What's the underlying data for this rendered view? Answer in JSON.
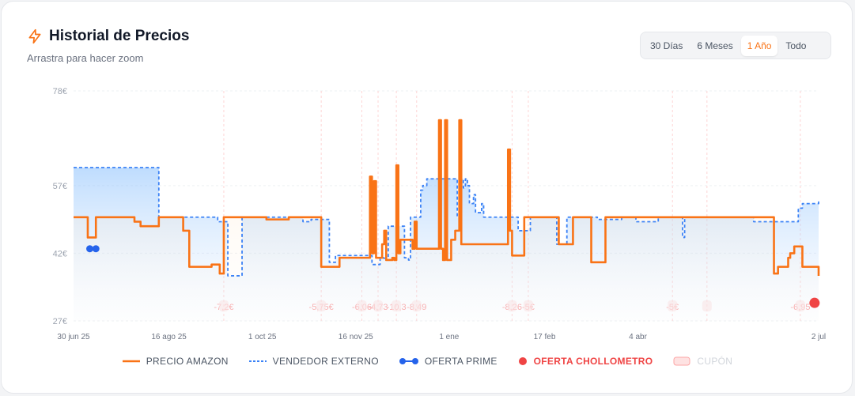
{
  "header": {
    "title": "Historial de Precios",
    "subtitle": "Arrastra para hacer zoom"
  },
  "range": {
    "options": [
      "30 Días",
      "6 Meses",
      "1 Año",
      "Todo"
    ],
    "selected": "1 Año"
  },
  "legend": {
    "amazon": "PRECIO AMAZON",
    "external": "VENDEDOR EXTERNO",
    "prime": "OFERTA PRIME",
    "chollometro": "OFERTA CHOLLOMETRO",
    "coupon": "CUPÓN"
  },
  "colors": {
    "amazon": "#f97316",
    "external": "#3b82f6",
    "prime": "#2563eb",
    "chollometro": "#ef4444",
    "coupon": "#fca5a5"
  },
  "chart_data": {
    "type": "line",
    "x_axis_type": "date",
    "xlim": [
      "2025-06-30",
      "2026-07-02"
    ],
    "ylim": [
      27,
      78
    ],
    "yticks": [
      27,
      42,
      57,
      78
    ],
    "ytick_labels": [
      "27€",
      "42€",
      "57€",
      "78€"
    ],
    "xticks": [
      {
        "date": "2025-06-30",
        "label": "30 jun 25"
      },
      {
        "date": "2025-08-16",
        "label": "16 ago 25"
      },
      {
        "date": "2025-10-01",
        "label": "1 oct 25"
      },
      {
        "date": "2025-11-16",
        "label": "16 nov 25"
      },
      {
        "date": "2026-01-01",
        "label": "1 ene"
      },
      {
        "date": "2026-02-17",
        "label": "17 feb"
      },
      {
        "date": "2026-04-04",
        "label": "4 abr"
      },
      {
        "date": "2026-07-02",
        "label": "2 jul"
      }
    ],
    "grid": true,
    "legend_position": "bottom",
    "series": [
      {
        "name": "PRECIO AMAZON",
        "style": "step-solid",
        "points": [
          [
            "2025-06-30",
            50
          ],
          [
            "2025-07-07",
            45.5
          ],
          [
            "2025-07-11",
            50
          ],
          [
            "2025-07-30",
            49
          ],
          [
            "2025-08-02",
            48
          ],
          [
            "2025-08-11",
            50
          ],
          [
            "2025-08-23",
            47
          ],
          [
            "2025-08-26",
            39
          ],
          [
            "2025-09-06",
            39.5
          ],
          [
            "2025-09-10",
            37.5
          ],
          [
            "2025-09-12",
            50
          ],
          [
            "2025-09-18",
            50
          ],
          [
            "2025-10-03",
            49.5
          ],
          [
            "2025-10-14",
            50
          ],
          [
            "2025-10-30",
            39
          ],
          [
            "2025-11-08",
            41
          ],
          [
            "2025-11-22",
            41
          ],
          [
            "2025-11-23",
            59
          ],
          [
            "2025-11-24",
            42
          ],
          [
            "2025-11-25",
            58
          ],
          [
            "2025-11-26",
            41
          ],
          [
            "2025-11-29",
            44
          ],
          [
            "2025-11-30",
            47
          ],
          [
            "2025-12-01",
            40.5
          ],
          [
            "2025-12-04",
            41
          ],
          [
            "2025-12-05",
            40.5
          ],
          [
            "2025-12-06",
            61.5
          ],
          [
            "2025-12-07",
            42
          ],
          [
            "2025-12-08",
            45
          ],
          [
            "2025-12-14",
            43
          ],
          [
            "2025-12-15",
            49
          ],
          [
            "2025-12-16",
            43
          ],
          [
            "2025-12-27",
            71.5
          ],
          [
            "2025-12-28",
            43
          ],
          [
            "2025-12-29",
            40.5
          ],
          [
            "2025-12-30",
            71.5
          ],
          [
            "2025-12-31",
            40.5
          ],
          [
            "2026-01-02",
            45
          ],
          [
            "2026-01-04",
            47
          ],
          [
            "2026-01-06",
            71.5
          ],
          [
            "2026-01-07",
            44
          ],
          [
            "2026-01-30",
            65
          ],
          [
            "2026-01-31",
            47
          ],
          [
            "2026-02-01",
            41.5
          ],
          [
            "2026-02-07",
            50
          ],
          [
            "2026-02-24",
            44
          ],
          [
            "2026-03-03",
            50
          ],
          [
            "2026-03-12",
            40
          ],
          [
            "2026-03-19",
            50
          ],
          [
            "2026-06-02",
            50
          ],
          [
            "2026-06-10",
            37.5
          ],
          [
            "2026-06-12",
            39
          ],
          [
            "2026-06-17",
            41
          ],
          [
            "2026-06-18",
            42
          ],
          [
            "2026-06-20",
            43.5
          ],
          [
            "2026-06-24",
            39
          ],
          [
            "2026-07-02",
            37
          ]
        ]
      },
      {
        "name": "VENDEDOR EXTERNO",
        "style": "step-dashed",
        "points": [
          [
            "2025-06-30",
            61
          ],
          [
            "2025-07-30",
            61
          ],
          [
            "2025-08-11",
            50
          ],
          [
            "2025-09-08",
            50
          ],
          [
            "2025-09-09",
            49
          ],
          [
            "2025-09-14",
            37
          ],
          [
            "2025-09-21",
            50
          ],
          [
            "2025-10-21",
            49
          ],
          [
            "2025-10-25",
            49.5
          ],
          [
            "2025-11-03",
            40
          ],
          [
            "2025-11-06",
            41.5
          ],
          [
            "2025-11-14",
            41.5
          ],
          [
            "2025-11-24",
            39.5
          ],
          [
            "2025-11-28",
            41
          ],
          [
            "2025-11-30",
            40.5
          ],
          [
            "2025-12-02",
            48
          ],
          [
            "2025-12-10",
            41
          ],
          [
            "2025-12-12",
            40.5
          ],
          [
            "2025-12-13",
            50
          ],
          [
            "2025-12-18",
            56
          ],
          [
            "2025-12-19",
            57
          ],
          [
            "2025-12-21",
            58.5
          ],
          [
            "2026-01-05",
            50
          ],
          [
            "2026-01-07",
            58.5
          ],
          [
            "2026-01-08",
            56.5
          ],
          [
            "2026-01-09",
            58.5
          ],
          [
            "2026-01-10",
            57
          ],
          [
            "2026-01-11",
            53
          ],
          [
            "2026-01-13",
            55
          ],
          [
            "2026-01-14",
            51
          ],
          [
            "2026-01-17",
            53
          ],
          [
            "2026-01-18",
            50
          ],
          [
            "2026-02-04",
            47
          ],
          [
            "2026-02-10",
            50
          ],
          [
            "2026-02-23",
            44
          ],
          [
            "2026-02-28",
            50
          ],
          [
            "2026-03-15",
            49.5
          ],
          [
            "2026-03-27",
            50
          ],
          [
            "2026-04-03",
            49
          ],
          [
            "2026-04-14",
            50
          ],
          [
            "2026-04-26",
            45.5
          ],
          [
            "2026-04-27",
            50
          ],
          [
            "2026-05-31",
            49
          ],
          [
            "2026-06-21",
            49
          ],
          [
            "2026-06-22",
            52
          ],
          [
            "2026-06-24",
            53
          ],
          [
            "2026-07-02",
            53.5
          ]
        ]
      }
    ],
    "prime_offers": [
      {
        "date": "2025-07-08",
        "price": 43
      },
      {
        "date": "2025-07-11",
        "price": 43
      }
    ],
    "chollometro_offers": [
      {
        "date": "2026-06-30",
        "price": 31
      }
    ],
    "coupons": [
      {
        "date": "2025-09-12",
        "label": "-7,2€"
      },
      {
        "date": "2025-10-30",
        "label": "-5,75€"
      },
      {
        "date": "2025-11-19",
        "label": "-6,06"
      },
      {
        "date": "2025-11-27",
        "label": "-4,73"
      },
      {
        "date": "2025-12-06",
        "label": "-10,3"
      },
      {
        "date": "2025-12-16",
        "label": "-8,49"
      },
      {
        "date": "2026-02-01",
        "label": "-8,26"
      },
      {
        "date": "2026-02-09",
        "label": "-5€"
      },
      {
        "date": "2026-04-21",
        "label": "-5€"
      },
      {
        "date": "2026-05-08",
        "label": ""
      },
      {
        "date": "2026-06-23",
        "label": "-6,95"
      }
    ]
  }
}
